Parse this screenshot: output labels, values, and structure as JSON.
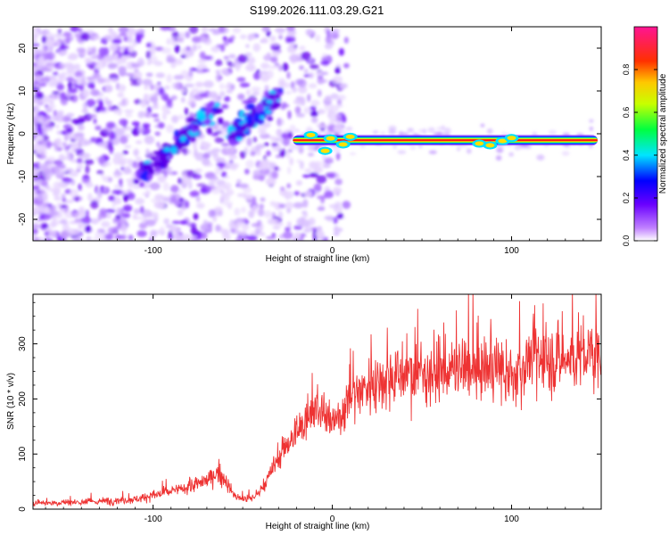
{
  "chart_data": [
    {
      "type": "heatmap",
      "title": "S199.2026.111.03.29.G21",
      "xlabel": "Height of straight line (km)",
      "ylabel": "Frequency (Hz)",
      "xlim": [
        -167,
        150
      ],
      "ylim": [
        -25,
        25
      ],
      "xticks": [
        -100,
        0,
        100
      ],
      "xtick_labels": [
        "-100",
        "0",
        "100"
      ],
      "yticks": [
        -20,
        -10,
        0,
        10,
        20
      ],
      "ytick_labels": [
        "-20",
        "-10",
        "0",
        "10",
        "20"
      ],
      "colorbar": {
        "label": "Normalized spectral amplitude",
        "range": [
          0,
          1
        ],
        "ticks": [
          0,
          0.2,
          0.4,
          0.6,
          0.8
        ],
        "tick_labels": [
          "0.0",
          "0.2",
          "0.4",
          "0.6",
          "0.8"
        ],
        "colors": [
          "#ffffff",
          "#9b30ff",
          "#0000ff",
          "#00e5ff",
          "#00ff00",
          "#ffff00",
          "#ff7f00",
          "#ff0000",
          "#ff1493"
        ]
      },
      "features": [
        {
          "name": "reflected-ray-trace",
          "from": [
            -107,
            -10
          ],
          "to": [
            -65,
            6
          ]
        },
        {
          "name": "secondary-trace",
          "from": [
            -57,
            -1
          ],
          "to": [
            -30,
            9
          ]
        },
        {
          "name": "direct-signal",
          "x_range": [
            -22,
            148
          ],
          "frequency": -1.5
        }
      ]
    },
    {
      "type": "line",
      "xlabel": "Height of straight line (km)",
      "ylabel": "SNR (10 * v/v)",
      "xlim": [
        -167,
        150
      ],
      "ylim": [
        0,
        390
      ],
      "xticks": [
        -100,
        0,
        100
      ],
      "xtick_labels": [
        "-100",
        "0",
        "100"
      ],
      "yticks": [
        0,
        100,
        200,
        300
      ],
      "ytick_labels": [
        "0",
        "100",
        "200",
        "300"
      ],
      "color": "#ee3333",
      "series": [
        {
          "name": "SNR",
          "x": [
            -167,
            -150,
            -130,
            -110,
            -100,
            -90,
            -80,
            -70,
            -65,
            -60,
            -55,
            -50,
            -45,
            -40,
            -35,
            -30,
            -25,
            -20,
            -15,
            -10,
            -5,
            0,
            5,
            10,
            15,
            20,
            30,
            40,
            50,
            60,
            70,
            80,
            90,
            95,
            100,
            105,
            110,
            120,
            130,
            140,
            150
          ],
          "values": [
            12,
            12,
            14,
            18,
            25,
            32,
            40,
            52,
            65,
            55,
            25,
            18,
            20,
            32,
            60,
            95,
            120,
            135,
            165,
            185,
            170,
            150,
            175,
            205,
            215,
            225,
            240,
            245,
            248,
            250,
            252,
            255,
            258,
            250,
            230,
            255,
            275,
            270,
            272,
            278,
            282
          ]
        }
      ]
    }
  ]
}
